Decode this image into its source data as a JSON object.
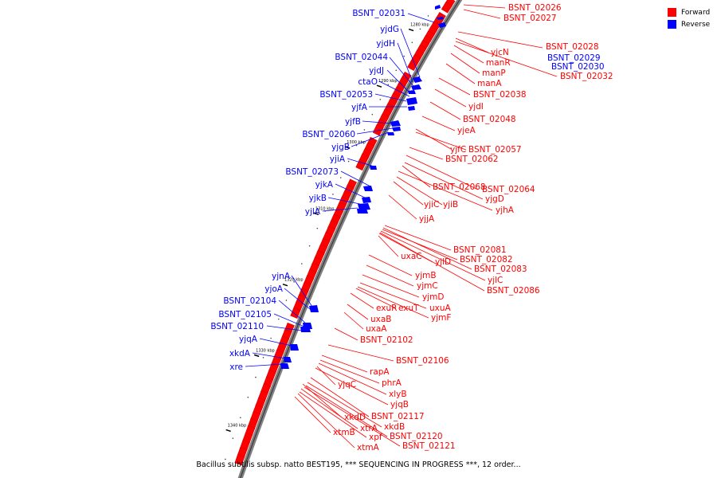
{
  "legend": {
    "forward_label": "Forward",
    "reverse_label": "Reverse",
    "forward_color": "#ff0000",
    "reverse_color": "#0000ff"
  },
  "caption": "Bacillus subtilis subsp. natto BEST195, *** SEQUENCING IN PROGRESS ***, 12 order...",
  "ticks": [
    "1280 kbp",
    "1290 kbp",
    "1300 kbp",
    "1310 kbp",
    "1320 kbp",
    "1330 kbp",
    "1340 kbp"
  ],
  "forward_genes": [
    "BSNT_02026",
    "BSNT_02027",
    "BSNT_02028",
    "yjcN",
    "BSNT_02029",
    "manR",
    "BSNT_02030",
    "manP",
    "BSNT_02032",
    "manA",
    "BSNT_02038",
    "yjdI",
    "BSNT_02048",
    "yjeA",
    "yjfC",
    "BSNT_02057",
    "BSNT_02062",
    "BSNT_02068",
    "BSNT_02064",
    "yjgD",
    "yjiC",
    "yjiB",
    "yjhA",
    "yjjA",
    "BSNT_02081",
    "uxaC",
    "yjlD",
    "BSNT_02082",
    "BSNT_02083",
    "yjmB",
    "yjlC",
    "yjmC",
    "BSNT_02086",
    "yjmD",
    "uxuA",
    "exuR",
    "exuT",
    "yjmF",
    "uxaB",
    "uxaA",
    "BSNT_02102",
    "BSNT_02106",
    "rapA",
    "yjqC",
    "phrA",
    "xlyB",
    "yjqB",
    "xkdD",
    "BSNT_02117",
    "xtrA",
    "xkdB",
    "xtmB",
    "xpf",
    "BSNT_02120",
    "xtmA",
    "BSNT_02121"
  ],
  "reverse_genes": [
    "BSNT_02031",
    "yjdG",
    "yjdH",
    "BSNT_02044",
    "yjdJ",
    "ctaO",
    "BSNT_02053",
    "yjfA",
    "yjfB",
    "BSNT_02060",
    "yjgB",
    "yjiA",
    "BSNT_02073",
    "yjkA",
    "yjkB",
    "yjlA",
    "yjnA",
    "yjoA",
    "BSNT_02104",
    "BSNT_02105",
    "BSNT_02110",
    "yjqA",
    "xkdA",
    "xre"
  ]
}
